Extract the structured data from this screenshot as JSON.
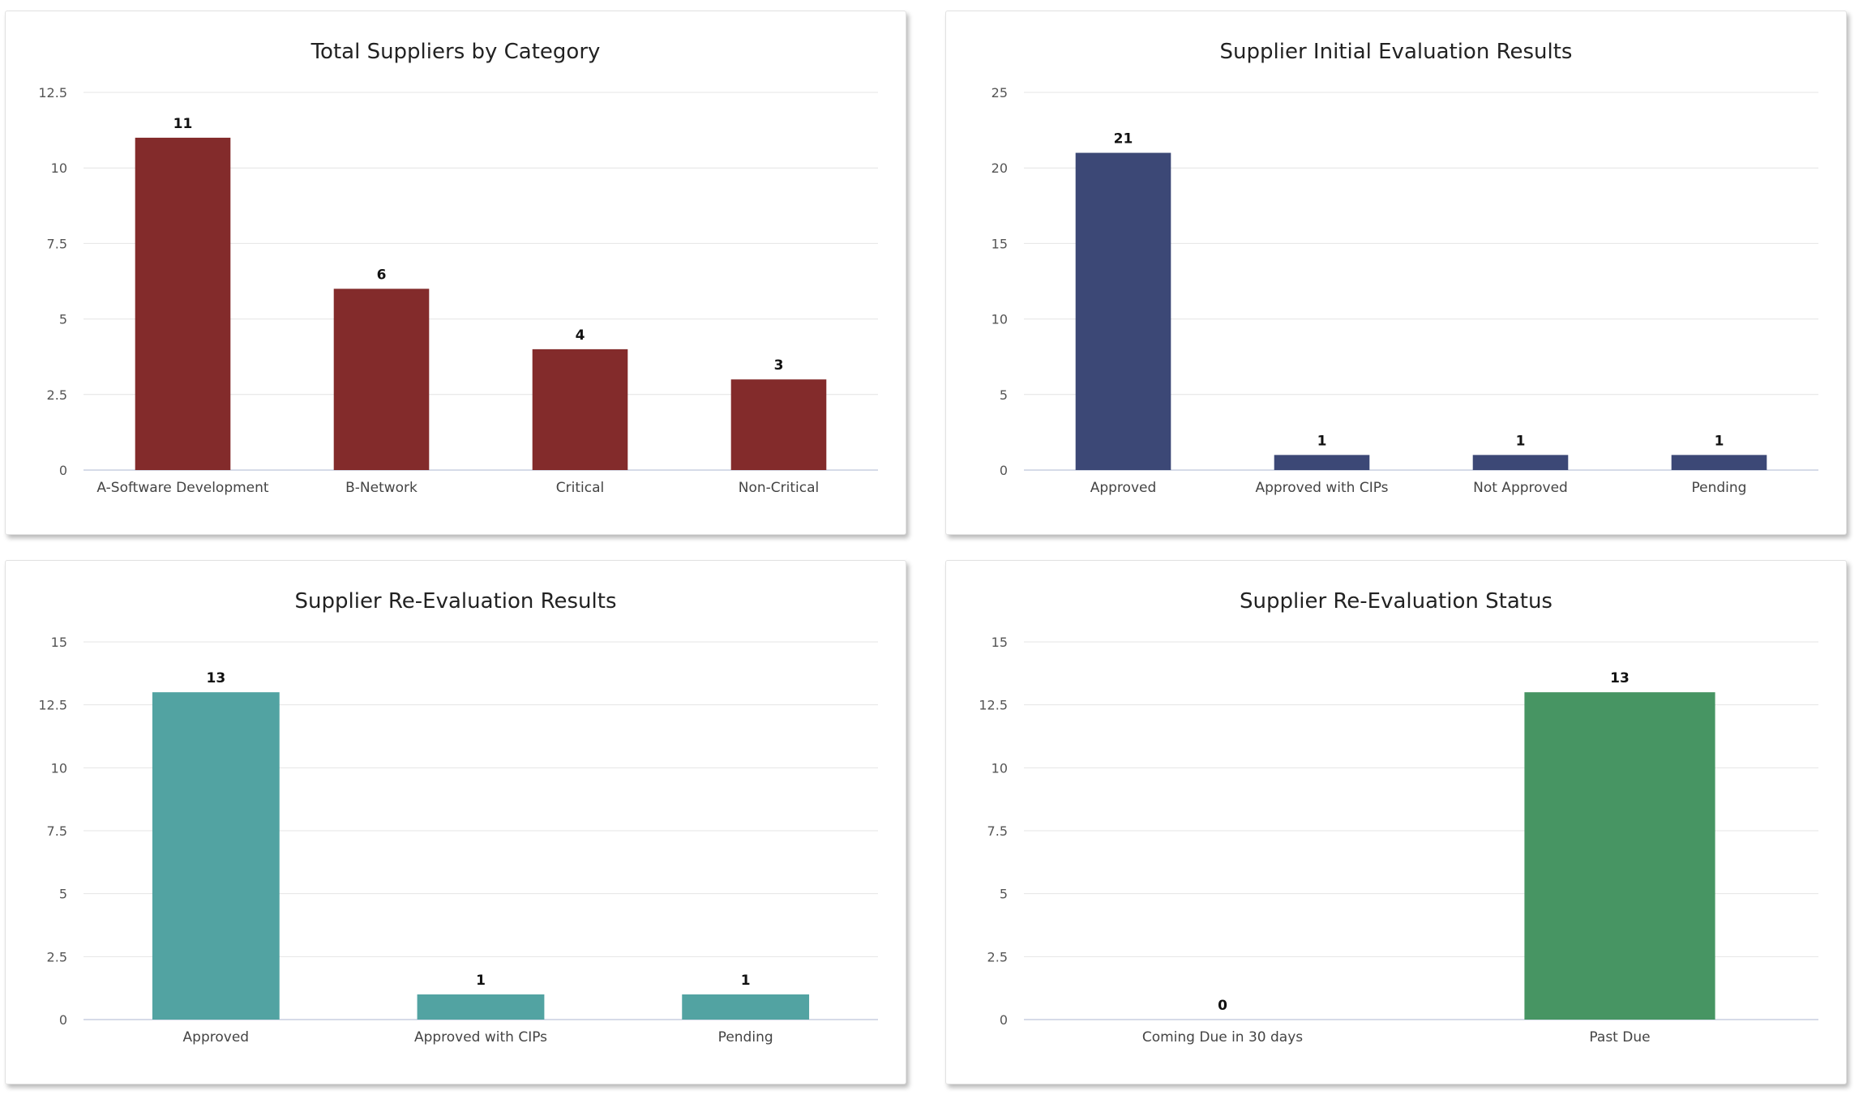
{
  "chart_data": [
    {
      "type": "bar",
      "title": "Total Suppliers by Category",
      "categories": [
        "A-Software Development",
        "B-Network",
        "Critical",
        "Non-Critical"
      ],
      "values": [
        11,
        6,
        4,
        3
      ],
      "ylim": [
        0,
        12.5
      ],
      "yticks": [
        "0",
        "2.5",
        "5",
        "7.5",
        "10",
        "12.5"
      ],
      "color": "#832b2b",
      "grid": true
    },
    {
      "type": "bar",
      "title": "Supplier Initial Evaluation Results",
      "categories": [
        "Approved",
        "Approved with CIPs",
        "Not Approved",
        "Pending"
      ],
      "values": [
        21,
        1,
        1,
        1
      ],
      "ylim": [
        0,
        25
      ],
      "yticks": [
        "0",
        "5",
        "10",
        "15",
        "20",
        "25"
      ],
      "color": "#3c4876",
      "grid": true
    },
    {
      "type": "bar",
      "title": "Supplier Re-Evaluation Results",
      "categories": [
        "Approved",
        "Approved with CIPs",
        "Pending"
      ],
      "values": [
        13,
        1,
        1
      ],
      "ylim": [
        0,
        15
      ],
      "yticks": [
        "0",
        "2.5",
        "5",
        "7.5",
        "10",
        "12.5",
        "15"
      ],
      "color": "#52a3a2",
      "grid": true
    },
    {
      "type": "bar",
      "title": "Supplier Re-Evaluation Status",
      "categories": [
        "Coming Due in 30 days",
        "Past Due"
      ],
      "values": [
        0,
        13
      ],
      "ylim": [
        0,
        15
      ],
      "yticks": [
        "0",
        "2.5",
        "5",
        "7.5",
        "10",
        "12.5",
        "15"
      ],
      "color": "#479563",
      "grid": true
    }
  ]
}
